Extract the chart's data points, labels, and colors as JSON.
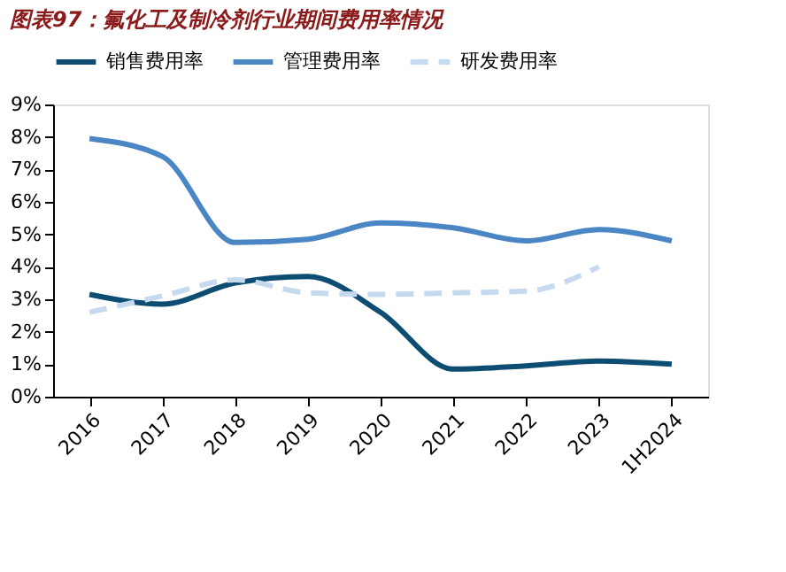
{
  "chart_data": {
    "type": "line",
    "title": "图表97：氟化工及制冷剂行业期间费用率情况",
    "categories": [
      "2016",
      "2017",
      "2018",
      "2019",
      "2020",
      "2021",
      "2022",
      "2023",
      "1H2024"
    ],
    "series": [
      {
        "name": "销售费用率",
        "color": "#0e4d72",
        "values": [
          3.15,
          2.85,
          3.5,
          3.7,
          2.6,
          0.85,
          0.95,
          1.1,
          1.0
        ]
      },
      {
        "name": "管理费用率",
        "color": "#4a85c4",
        "values": [
          7.95,
          7.4,
          4.75,
          4.85,
          5.35,
          5.2,
          4.8,
          5.15,
          4.8
        ]
      },
      {
        "name": "研发费用率",
        "color": "#c6daef",
        "line_style": "dashed",
        "values": [
          2.6,
          3.1,
          3.6,
          3.2,
          3.15,
          3.2,
          3.25,
          4.0,
          null
        ]
      }
    ],
    "ylim": [
      0,
      9
    ],
    "yticks": [
      {
        "value": 0,
        "label": "0%"
      },
      {
        "value": 1,
        "label": "1%"
      },
      {
        "value": 2,
        "label": "2%"
      },
      {
        "value": 3,
        "label": "3%"
      },
      {
        "value": 4,
        "label": "4%"
      },
      {
        "value": 5,
        "label": "5%"
      },
      {
        "value": 6,
        "label": "6%"
      },
      {
        "value": 7,
        "label": "7%"
      },
      {
        "value": 8,
        "label": "8%"
      },
      {
        "value": 9,
        "label": "9%"
      }
    ],
    "legend": "top",
    "grid": false,
    "marker": "none",
    "line_style": "solid"
  }
}
